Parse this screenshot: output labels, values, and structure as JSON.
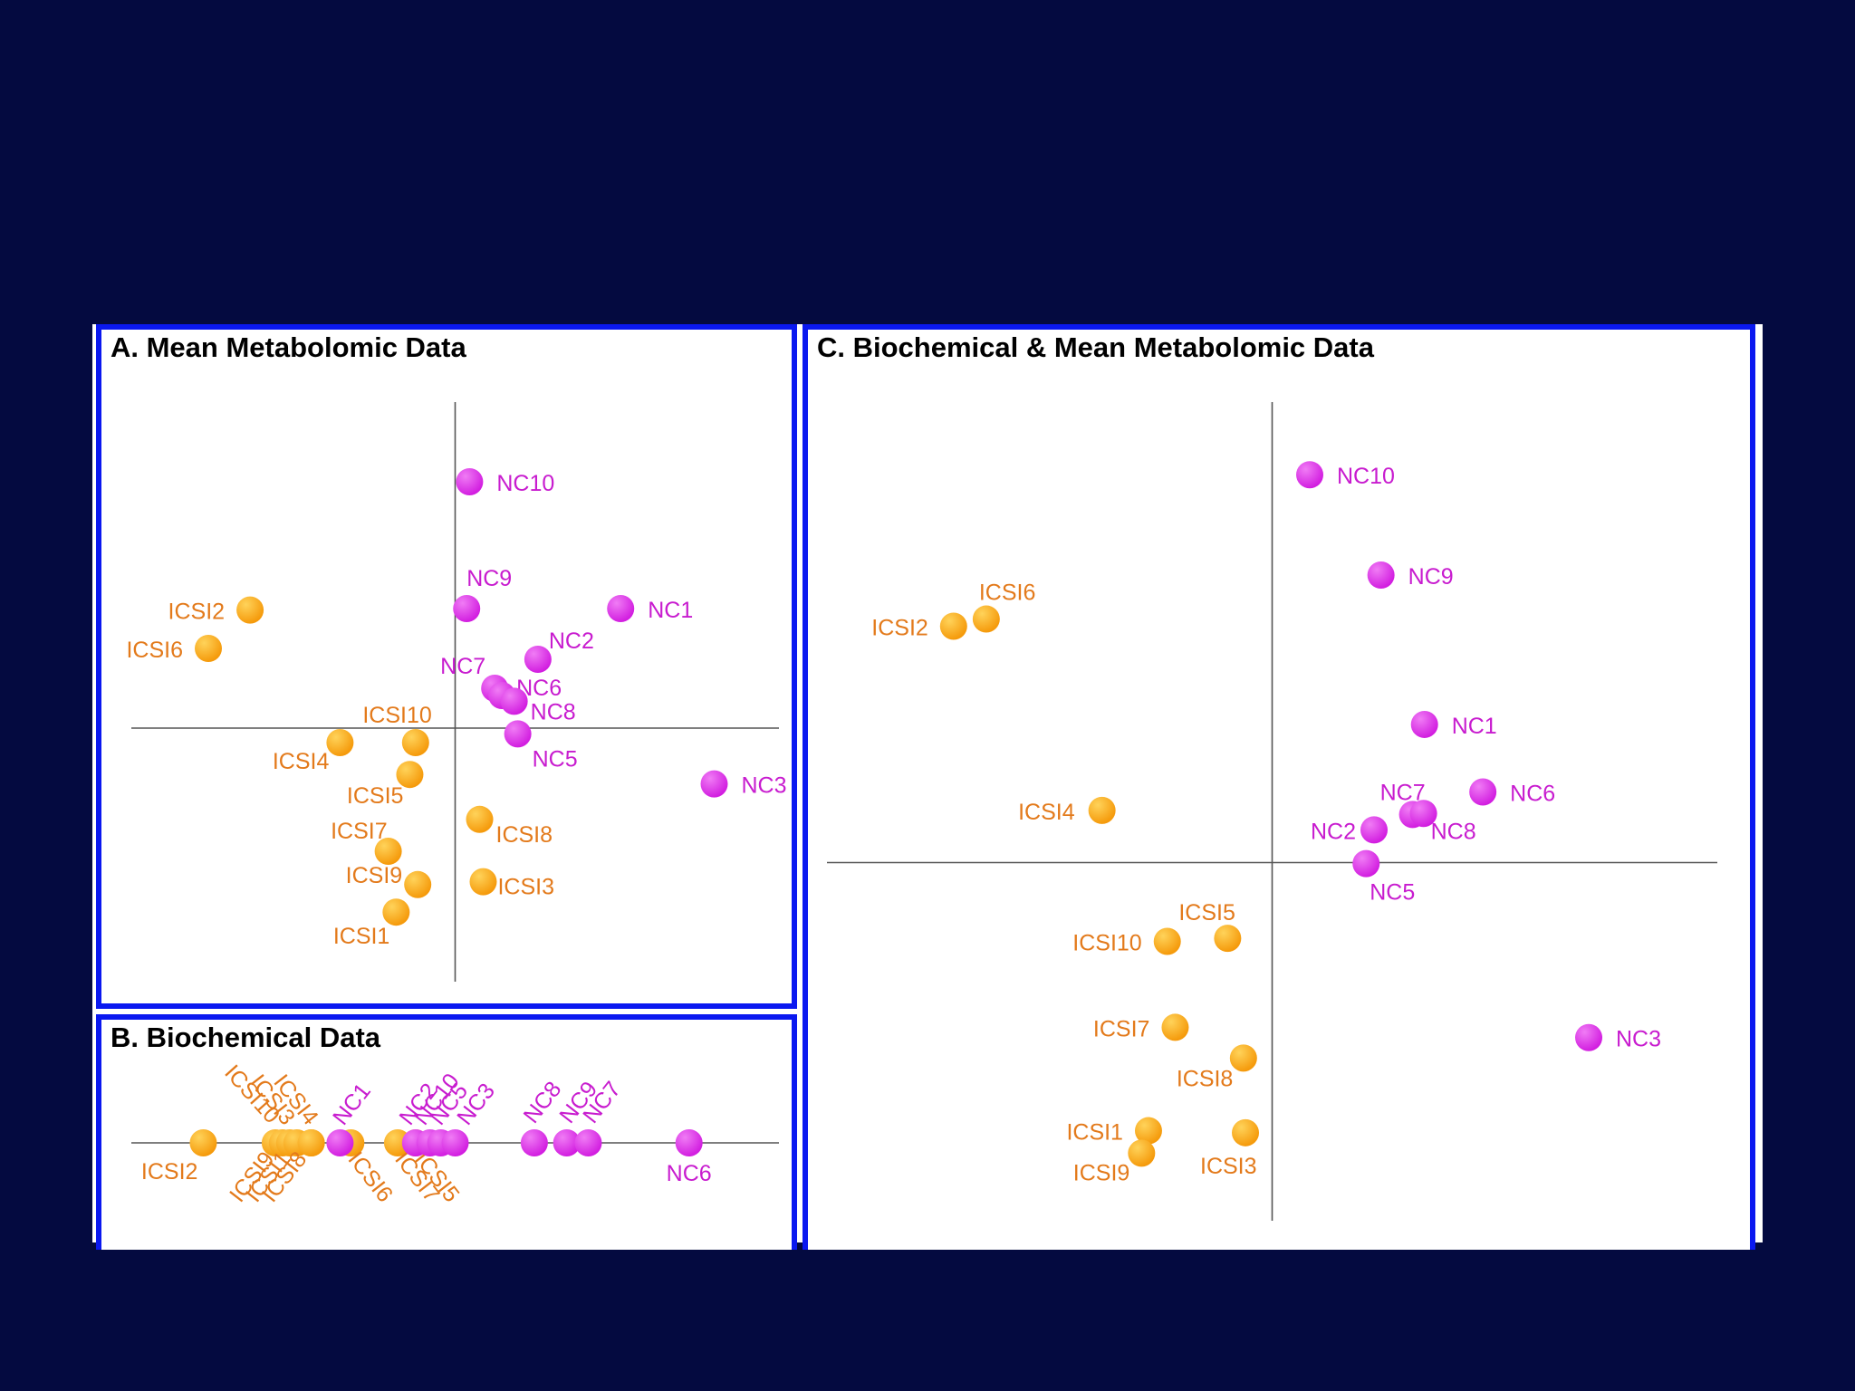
{
  "colors": {
    "background": "#040a40",
    "border": "#0a18f0",
    "icsi": "#f59a0b",
    "icsi_text": "#e37a1b",
    "nc": "#d21ee0",
    "nc_text": "#c81ccf",
    "axis": "#555555"
  },
  "chart_data": [
    {
      "id": "A",
      "type": "scatter",
      "title": "A. Mean Metabolomic Data",
      "xlim": [
        -4.5,
        4.5
      ],
      "ylim": [
        -3.5,
        4.5
      ],
      "axes": "crosshair at origin",
      "points": [
        {
          "label": "NC10",
          "group": "NC",
          "x": 0.2,
          "y": 3.4
        },
        {
          "label": "NC9",
          "group": "NC",
          "x": 0.16,
          "y": 1.65
        },
        {
          "label": "NC1",
          "group": "NC",
          "x": 2.3,
          "y": 1.65
        },
        {
          "label": "NC2",
          "group": "NC",
          "x": 1.15,
          "y": 0.95
        },
        {
          "label": "NC7",
          "group": "NC",
          "x": 0.55,
          "y": 0.55
        },
        {
          "label": "NC6",
          "group": "NC",
          "x": 0.65,
          "y": 0.45
        },
        {
          "label": "NC8",
          "group": "NC",
          "x": 0.82,
          "y": 0.37
        },
        {
          "label": "NC5",
          "group": "NC",
          "x": 0.87,
          "y": -0.08
        },
        {
          "label": "NC3",
          "group": "NC",
          "x": 3.6,
          "y": -0.77
        },
        {
          "label": "ICSI2",
          "group": "ICSI",
          "x": -2.85,
          "y": 1.63
        },
        {
          "label": "ICSI6",
          "group": "ICSI",
          "x": -3.43,
          "y": 1.1
        },
        {
          "label": "ICSI10",
          "group": "ICSI",
          "x": -0.55,
          "y": -0.2
        },
        {
          "label": "ICSI4",
          "group": "ICSI",
          "x": -1.6,
          "y": -0.2
        },
        {
          "label": "ICSI5",
          "group": "ICSI",
          "x": -0.63,
          "y": -0.64
        },
        {
          "label": "ICSI8",
          "group": "ICSI",
          "x": 0.34,
          "y": -1.26
        },
        {
          "label": "ICSI7",
          "group": "ICSI",
          "x": -0.93,
          "y": -1.7
        },
        {
          "label": "ICSI9",
          "group": "ICSI",
          "x": -0.52,
          "y": -2.16
        },
        {
          "label": "ICSI3",
          "group": "ICSI",
          "x": 0.39,
          "y": -2.12
        },
        {
          "label": "ICSI1",
          "group": "ICSI",
          "x": -0.82,
          "y": -2.54
        }
      ]
    },
    {
      "id": "B",
      "type": "scatter",
      "title": "B. Biochemical Data",
      "xlim": [
        -4.5,
        4.5
      ],
      "axes": "single horizontal axis",
      "points": [
        {
          "label": "ICSI2",
          "group": "ICSI",
          "x": -3.5
        },
        {
          "label": "ICSI10",
          "group": "ICSI",
          "x": -2.5
        },
        {
          "label": "ICSI9",
          "group": "ICSI",
          "x": -2.4
        },
        {
          "label": "ICSI3",
          "group": "ICSI",
          "x": -2.3
        },
        {
          "label": "ICSI1",
          "group": "ICSI",
          "x": -2.2
        },
        {
          "label": "ICSI4",
          "group": "ICSI",
          "x": -2.0
        },
        {
          "label": "ICSI8",
          "group": "ICSI",
          "x": -2.0
        },
        {
          "label": "ICSI6",
          "group": "ICSI",
          "x": -1.45
        },
        {
          "label": "NC1",
          "group": "NC",
          "x": -1.6
        },
        {
          "label": "ICSI7",
          "group": "ICSI",
          "x": -0.8
        },
        {
          "label": "ICSI5",
          "group": "ICSI",
          "x": -0.55
        },
        {
          "label": "NC2",
          "group": "NC",
          "x": -0.55
        },
        {
          "label": "NC10",
          "group": "NC",
          "x": -0.35
        },
        {
          "label": "NC5",
          "group": "NC",
          "x": -0.2
        },
        {
          "label": "NC3",
          "group": "NC",
          "x": 0.0
        },
        {
          "label": "NC8",
          "group": "NC",
          "x": 1.1
        },
        {
          "label": "NC9",
          "group": "NC",
          "x": 1.55
        },
        {
          "label": "NC7",
          "group": "NC",
          "x": 1.85
        },
        {
          "label": "NC6",
          "group": "NC",
          "x": 3.25
        }
      ]
    },
    {
      "id": "C",
      "type": "scatter",
      "title": "C. Biochemical & Mean Metabolomic Data",
      "xlim": [
        -4.5,
        4.5
      ],
      "ylim": [
        -3.5,
        4.5
      ],
      "axes": "crosshair at origin",
      "points": [
        {
          "label": "NC10",
          "group": "NC",
          "x": 0.38,
          "y": 3.79
        },
        {
          "label": "NC9",
          "group": "NC",
          "x": 1.1,
          "y": 2.81
        },
        {
          "label": "NC1",
          "group": "NC",
          "x": 1.54,
          "y": 1.35
        },
        {
          "label": "NC6",
          "group": "NC",
          "x": 2.13,
          "y": 0.69
        },
        {
          "label": "NC7",
          "group": "NC",
          "x": 1.42,
          "y": 0.47
        },
        {
          "label": "NC8",
          "group": "NC",
          "x": 1.53,
          "y": 0.48
        },
        {
          "label": "NC2",
          "group": "NC",
          "x": 1.03,
          "y": 0.32
        },
        {
          "label": "NC5",
          "group": "NC",
          "x": 0.95,
          "y": -0.01
        },
        {
          "label": "NC3",
          "group": "NC",
          "x": 3.2,
          "y": -1.71
        },
        {
          "label": "ICSI6",
          "group": "ICSI",
          "x": -2.89,
          "y": 2.38
        },
        {
          "label": "ICSI2",
          "group": "ICSI",
          "x": -3.22,
          "y": 2.31
        },
        {
          "label": "ICSI4",
          "group": "ICSI",
          "x": -1.72,
          "y": 0.51
        },
        {
          "label": "ICSI5",
          "group": "ICSI",
          "x": -0.45,
          "y": -0.74
        },
        {
          "label": "ICSI10",
          "group": "ICSI",
          "x": -1.06,
          "y": -0.77
        },
        {
          "label": "ICSI7",
          "group": "ICSI",
          "x": -0.98,
          "y": -1.61
        },
        {
          "label": "ICSI8",
          "group": "ICSI",
          "x": -0.29,
          "y": -1.91
        },
        {
          "label": "ICSI1",
          "group": "ICSI",
          "x": -1.25,
          "y": -2.62
        },
        {
          "label": "ICSI3",
          "group": "ICSI",
          "x": -0.27,
          "y": -2.64
        },
        {
          "label": "ICSI9",
          "group": "ICSI",
          "x": -1.32,
          "y": -2.84
        }
      ]
    }
  ]
}
